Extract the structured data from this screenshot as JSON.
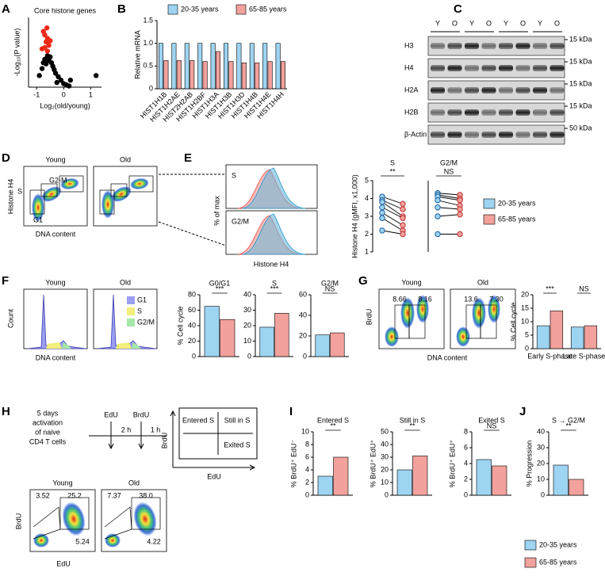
{
  "chart_data": [
    {
      "type": "scatter",
      "title": "Core histone genes",
      "xlabel": "Log₂(old/young)",
      "ylabel": "-Log₁₀(P value)",
      "xlim": [
        -1.3,
        1.4
      ],
      "xticks": [
        -1,
        0,
        1
      ],
      "ylim": [
        0,
        6
      ],
      "series": [
        {
          "color": "#000000",
          "x": [
            -0.9,
            -0.8,
            -0.75,
            -0.7,
            -0.6,
            -0.5,
            -0.45,
            -0.4,
            -0.35,
            -0.3,
            -0.2,
            -0.1,
            0.0,
            0.1,
            0.2,
            0.25,
            -0.55,
            -0.65,
            -0.25,
            1.2
          ],
          "values": [
            1.0,
            1.6,
            2.1,
            2.4,
            2.7,
            2.6,
            2.1,
            1.8,
            1.5,
            1.2,
            0.9,
            0.6,
            0.3,
            0.2,
            0.1,
            0.6,
            2.3,
            2.0,
            0.4,
            1.0
          ]
        },
        {
          "color": "#ee2a16",
          "x": [
            -0.75,
            -0.7,
            -0.6,
            -0.65,
            -0.55,
            -0.7,
            -0.6,
            -0.8,
            -0.5,
            -0.62
          ],
          "values": [
            4.8,
            4.5,
            4.2,
            3.9,
            3.6,
            3.4,
            3.1,
            3.3,
            4.0,
            5.1
          ]
        }
      ]
    },
    {
      "type": "bar",
      "ylabel": "Relative mRNA",
      "categories": [
        "HIST1H1B",
        "HIST1H2AE",
        "HIST2H2AB",
        "HIST1H2BF",
        "HIST1H3A",
        "HIST1H3B",
        "HIST1H3D",
        "HIST1H4B",
        "HIST1H4E",
        "HIST1H4H"
      ],
      "series": [
        {
          "name": "20-35 years",
          "color": "#9dd4f2",
          "values": [
            1,
            1,
            1,
            1,
            1,
            1,
            1,
            1,
            1,
            1
          ]
        },
        {
          "name": "65-85 years",
          "color": "#f2a19c",
          "values": [
            0.62,
            0.62,
            0.62,
            0.6,
            0.82,
            0.6,
            0.57,
            0.57,
            0.6,
            0.6
          ]
        }
      ],
      "ylim": [
        0,
        1.5
      ],
      "yticks": [
        0,
        0.5,
        {
          "value": 1,
          "label": "1.0"
        },
        1.5
      ]
    },
    {
      "type": "paired",
      "title": "S",
      "significance": [
        "**"
      ],
      "ylabel": "Histone H4 (gMFI, x1,000)",
      "series": [
        {
          "color": "#9dd4f2",
          "values": [
            4.1,
            3.9,
            3.8,
            3.5,
            3.2,
            2.9,
            2.2
          ]
        },
        {
          "color": "#f2a19c",
          "values": [
            3.7,
            3.4,
            3.0,
            2.9,
            2.5,
            2.2,
            2.0
          ]
        }
      ],
      "ylim": [
        1,
        5
      ],
      "yticks": [
        1,
        2,
        3,
        4,
        5
      ]
    },
    {
      "type": "paired",
      "title": "G2/M",
      "significance": [
        "NS"
      ],
      "series": [
        {
          "color": "#9dd4f2",
          "values": [
            4.3,
            4.2,
            4.1,
            3.9,
            3.5,
            3.0,
            2.0
          ]
        },
        {
          "color": "#f2a19c",
          "values": [
            4.2,
            4.0,
            3.9,
            3.6,
            3.4,
            3.1,
            2.0
          ]
        }
      ],
      "ylim": [
        1,
        5
      ]
    },
    {
      "type": "bar",
      "title": "G0/G1",
      "ylabel": "% Cell cycle",
      "significance": [
        "***"
      ],
      "series": [
        {
          "color": "#9dd4f2",
          "values": [
            65
          ]
        },
        {
          "color": "#f2a19c",
          "values": [
            48
          ]
        }
      ],
      "ylim": [
        0,
        80
      ],
      "yticks": [
        0,
        20,
        40,
        60,
        80
      ]
    },
    {
      "type": "bar",
      "title": "S",
      "significance": [
        "***"
      ],
      "series": [
        {
          "color": "#9dd4f2",
          "values": [
            19
          ]
        },
        {
          "color": "#f2a19c",
          "values": [
            28
          ]
        }
      ],
      "ylim": [
        0,
        40
      ],
      "yticks": [
        0,
        10,
        20,
        30,
        40
      ]
    },
    {
      "type": "bar",
      "title": "G2/M",
      "significance": [
        "NS"
      ],
      "series": [
        {
          "color": "#9dd4f2",
          "values": [
            21
          ]
        },
        {
          "color": "#f2a19c",
          "values": [
            23
          ]
        }
      ],
      "ylim": [
        0,
        60
      ],
      "yticks": [
        0,
        20,
        40,
        60
      ]
    },
    {
      "type": "bar",
      "ylabel": "% Cell cycle",
      "categories": [
        "Early S-phase",
        "Late S-phase"
      ],
      "significance": [
        "***",
        "NS"
      ],
      "series": [
        {
          "color": "#9dd4f2",
          "values": [
            8.5,
            8
          ]
        },
        {
          "color": "#f2a19c",
          "values": [
            14,
            8.5
          ]
        }
      ],
      "ylim": [
        0,
        20
      ],
      "yticks": [
        0,
        5,
        10,
        15,
        20
      ]
    },
    {
      "type": "bar",
      "title": "Entered S",
      "ylabel": "% BrdU⁺ EdU⁻",
      "significance": [
        "**"
      ],
      "series": [
        {
          "color": "#9dd4f2",
          "values": [
            3
          ]
        },
        {
          "color": "#f2a19c",
          "values": [
            6
          ]
        }
      ],
      "ylim": [
        0,
        10
      ],
      "yticks": [
        0,
        2,
        4,
        6,
        8,
        10
      ]
    },
    {
      "type": "bar",
      "title": "Still in S",
      "ylabel": "% BrdU⁺ EdU⁺",
      "significance": [
        "**"
      ],
      "series": [
        {
          "color": "#9dd4f2",
          "values": [
            20
          ]
        },
        {
          "color": "#f2a19c",
          "values": [
            31
          ]
        }
      ],
      "ylim": [
        0,
        50
      ],
      "yticks": [
        0,
        10,
        20,
        30,
        40,
        50
      ]
    },
    {
      "type": "bar",
      "title": "Exited S",
      "ylabel": "% BrdU⁺ EdU⁺",
      "significance": [
        "NS"
      ],
      "series": [
        {
          "color": "#9dd4f2",
          "values": [
            4.5
          ]
        },
        {
          "color": "#f2a19c",
          "values": [
            3.7
          ]
        }
      ],
      "ylim": [
        0,
        8
      ],
      "yticks": [
        0,
        2,
        4,
        6,
        8
      ]
    },
    {
      "type": "bar",
      "title": "S → G2/M",
      "ylabel": "% Progression",
      "significance": [
        "**"
      ],
      "series": [
        {
          "color": "#9dd4f2",
          "values": [
            19
          ]
        },
        {
          "color": "#f2a19c",
          "values": [
            10
          ]
        }
      ],
      "ylim": [
        0,
        40
      ],
      "yticks": [
        0,
        10,
        20,
        30,
        40
      ]
    }
  ],
  "figure": {
    "panel_labels": [
      "A",
      "B",
      "C",
      "D",
      "E",
      "F",
      "G",
      "H",
      "I",
      "J"
    ],
    "blot": {
      "columns": [
        "Y",
        "O",
        "Y",
        "O",
        "Y",
        "O",
        "Y",
        "O"
      ],
      "rows": [
        "H3",
        "H4",
        "H2A",
        "H2B",
        "β-Actin"
      ],
      "sizes": [
        "15 kDa",
        "15 kDa",
        "15 kDa",
        "15 kDa",
        "50 kDa"
      ]
    },
    "d": {
      "young": "Young",
      "old": "Old",
      "ylabel": "Histone H4",
      "xlabel": "DNA content",
      "gates": [
        "S",
        "G2-M",
        "G1"
      ]
    },
    "e": {
      "hist": [
        "S",
        "G2/M"
      ],
      "ylabel": "% of max",
      "xlabel": "Histone H4"
    },
    "f": {
      "young": "Young",
      "old": "Old",
      "ylabel": "Count",
      "xlabel": "DNA content",
      "legend": [
        "G1",
        "S",
        "G2/M"
      ]
    },
    "g": {
      "young": "Young",
      "old": "Old",
      "ylabel": "BrdU",
      "xlabel": "DNA content",
      "young_gates": [
        "8.66",
        "8.16"
      ],
      "old_gates": [
        "13.6",
        "7.30"
      ]
    },
    "h": {
      "protocol": [
        "5 days",
        "activation",
        "of naive",
        "CD4 T cells"
      ],
      "pulses": [
        "EdU",
        "BrdU"
      ],
      "intervals": [
        "2 h",
        "1 h"
      ],
      "quadrants": [
        "Entered S",
        "Still in S",
        "Exited S"
      ],
      "ylabel": "BrdU",
      "xlabel": "EdU",
      "young": "Young",
      "old": "Old",
      "young_gates": [
        "3.52",
        "25.2",
        "5.24"
      ],
      "old_gates": [
        "7.37",
        "38.0",
        "4.22"
      ]
    }
  }
}
